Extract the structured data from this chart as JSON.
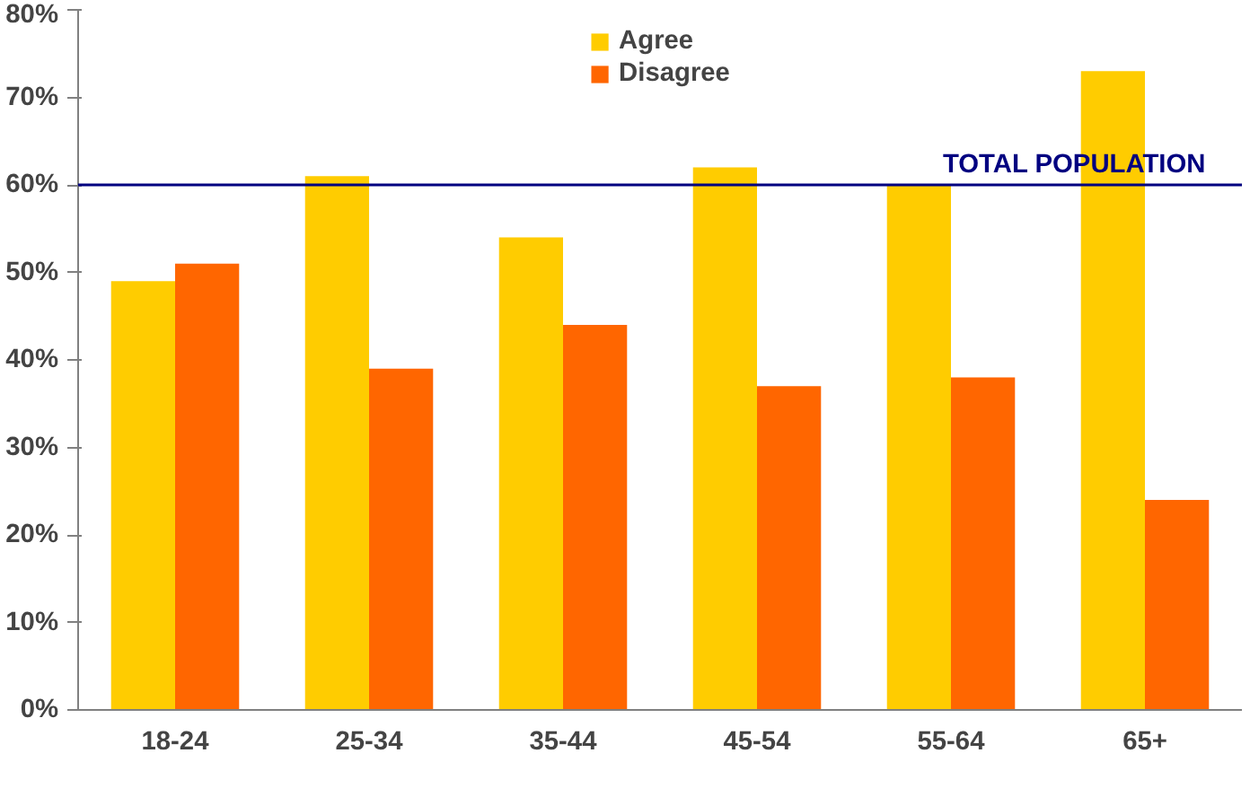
{
  "chart_data": {
    "type": "bar",
    "categories": [
      "18-24",
      "25-34",
      "35-44",
      "45-54",
      "55-64",
      "65+"
    ],
    "series": [
      {
        "name": "Agree",
        "color": "#ffcc00",
        "values": [
          49,
          61,
          54,
          62,
          60,
          73
        ]
      },
      {
        "name": "Disagree",
        "color": "#ff6600",
        "values": [
          51,
          39,
          44,
          37,
          38,
          24
        ]
      }
    ],
    "ylim": [
      0,
      80
    ],
    "yticks": [
      {
        "value": 0,
        "label": "0%"
      },
      {
        "value": 10,
        "label": "10%"
      },
      {
        "value": 20,
        "label": "20%"
      },
      {
        "value": 30,
        "label": "30%"
      },
      {
        "value": 40,
        "label": "40%"
      },
      {
        "value": 50,
        "label": "50%"
      },
      {
        "value": 60,
        "label": "60%"
      },
      {
        "value": 70,
        "label": "70%"
      },
      {
        "value": 80,
        "label": "80%"
      }
    ],
    "ref_lines": [
      {
        "axis": "y",
        "value": 60,
        "label": "TOTAL POPULATION",
        "color": "#000080",
        "line_style": "solid"
      }
    ],
    "grid": false,
    "legend": "top"
  }
}
